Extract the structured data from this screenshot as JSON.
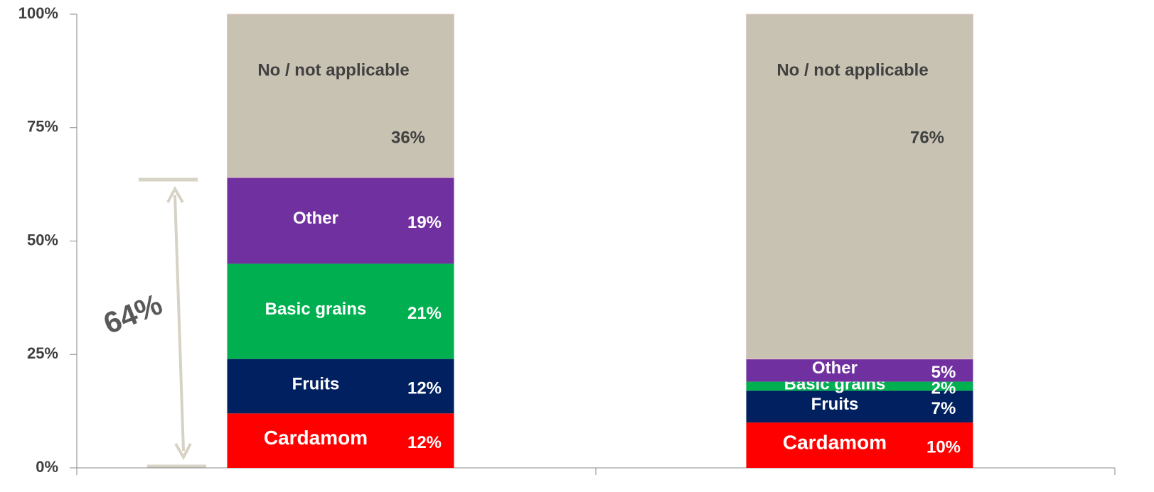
{
  "chart_data": {
    "type": "stacked_bar",
    "categories": [
      null,
      null
    ],
    "series": [
      {
        "name": "Cardamom",
        "color": "#ff0000",
        "values": [
          12,
          10
        ],
        "value_labels": [
          "12%",
          "10%"
        ]
      },
      {
        "name": "Fruits",
        "color": "#002060",
        "values": [
          12,
          7
        ],
        "value_labels": [
          "12%",
          "7%"
        ]
      },
      {
        "name": "Basic grains",
        "color": "#00b050",
        "values": [
          21,
          2
        ],
        "value_labels": [
          "21%",
          "2%"
        ]
      },
      {
        "name": "Other",
        "color": "#7030a0",
        "values": [
          19,
          5
        ],
        "value_labels": [
          "19%",
          "5%"
        ]
      },
      {
        "name": "No / not applicable",
        "color": "#c8c2b2",
        "values": [
          36,
          76
        ],
        "value_labels": [
          "36%",
          "76%"
        ]
      }
    ],
    "ylim": [
      0,
      100
    ],
    "yticks": [
      {
        "value": 0,
        "label": "0%"
      },
      {
        "value": 25,
        "label": "25%"
      },
      {
        "value": 50,
        "label": "50%"
      },
      {
        "value": 75,
        "label": "75%"
      },
      {
        "value": 100,
        "label": "100%"
      }
    ],
    "annotations": [
      "64%"
    ]
  }
}
